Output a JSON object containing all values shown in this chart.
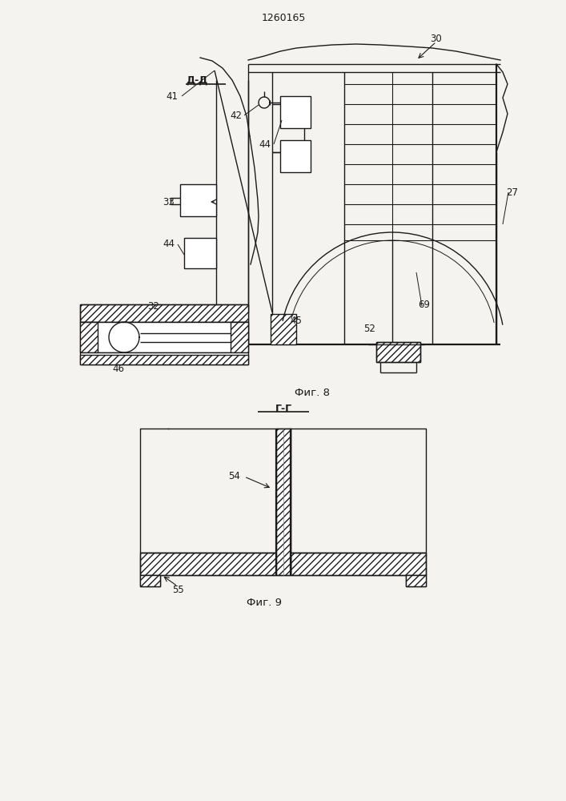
{
  "title": "1260165",
  "fig8_label": "Фиг. 8",
  "fig9_label": "Фиг. 9",
  "section_label_8": "Д-Д",
  "section_label_9": "Г-Г",
  "bg_color": "#f5f3ef",
  "line_color": "#1a1a1a",
  "lw": 1.0,
  "lw2": 1.6
}
